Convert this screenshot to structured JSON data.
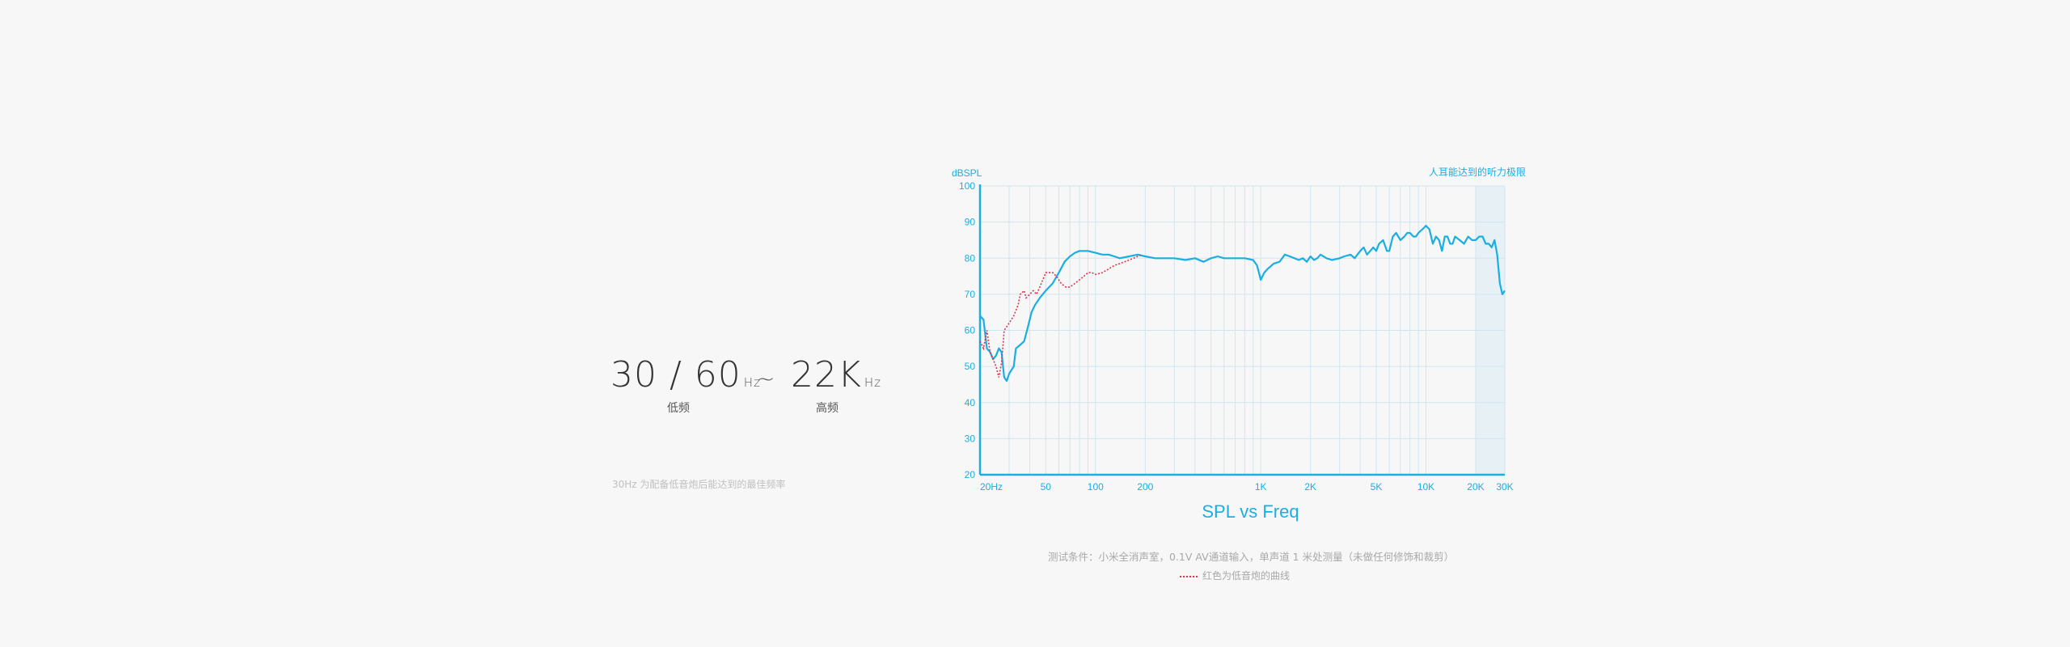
{
  "spec": {
    "low_value": "30 / 60",
    "low_unit": "Hz",
    "low_label": "低频",
    "range_symbol": "~",
    "high_value": "22K",
    "high_unit": "Hz",
    "high_label": "高频",
    "footnote": "30Hz 为配备低音炮后能达到的最佳频率"
  },
  "test_condition": "测试条件：小米全消声室，0.1V AV通道输入，单声道 1 米处测量（未做任何修饰和裁剪）",
  "legend_red": "红色为低音炮的曲线",
  "colors": {
    "main": "#1aaee2",
    "sub": "#e0344a",
    "grid": "#cfe6f2",
    "band": "#e6f0f5"
  },
  "chart_data": {
    "type": "line",
    "title": "SPL vs Freq",
    "ylabel": "dBSPL",
    "annotation": "人耳能达到的听力极限",
    "xscale": "log",
    "xlim": [
      20,
      30000
    ],
    "ylim": [
      20,
      100
    ],
    "xticks": [
      {
        "v": 20,
        "label": "20Hz"
      },
      {
        "v": 50,
        "label": "50"
      },
      {
        "v": 100,
        "label": "100"
      },
      {
        "v": 200,
        "label": "200"
      },
      {
        "v": 1000,
        "label": "1K"
      },
      {
        "v": 2000,
        "label": "2K"
      },
      {
        "v": 5000,
        "label": "5K"
      },
      {
        "v": 10000,
        "label": "10K"
      },
      {
        "v": 20000,
        "label": "20K"
      },
      {
        "v": 30000,
        "label": "30K"
      }
    ],
    "yticks": [
      20,
      30,
      40,
      50,
      60,
      70,
      80,
      90,
      100
    ],
    "shaded_band": [
      20000,
      30000
    ],
    "series": [
      {
        "role": "main",
        "points": [
          [
            20,
            64
          ],
          [
            21,
            63
          ],
          [
            22,
            55
          ],
          [
            23,
            54
          ],
          [
            24,
            52
          ],
          [
            25,
            53
          ],
          [
            26,
            55
          ],
          [
            27,
            54
          ],
          [
            28,
            47
          ],
          [
            29,
            46
          ],
          [
            30,
            48
          ],
          [
            32,
            50
          ],
          [
            33,
            55
          ],
          [
            35,
            56
          ],
          [
            37,
            57
          ],
          [
            39,
            61
          ],
          [
            41,
            65
          ],
          [
            43,
            67
          ],
          [
            46,
            69
          ],
          [
            50,
            71
          ],
          [
            55,
            73
          ],
          [
            60,
            76
          ],
          [
            65,
            79
          ],
          [
            70,
            80.5
          ],
          [
            75,
            81.5
          ],
          [
            80,
            82
          ],
          [
            90,
            82
          ],
          [
            100,
            81.5
          ],
          [
            110,
            81
          ],
          [
            120,
            81
          ],
          [
            130,
            80.5
          ],
          [
            140,
            80
          ],
          [
            160,
            80.5
          ],
          [
            180,
            81
          ],
          [
            200,
            80.5
          ],
          [
            230,
            80
          ],
          [
            260,
            80
          ],
          [
            300,
            80
          ],
          [
            350,
            79.5
          ],
          [
            400,
            80
          ],
          [
            450,
            79
          ],
          [
            500,
            80
          ],
          [
            550,
            80.5
          ],
          [
            600,
            80
          ],
          [
            700,
            80
          ],
          [
            800,
            80
          ],
          [
            900,
            79.5
          ],
          [
            950,
            78
          ],
          [
            1000,
            74
          ],
          [
            1050,
            76
          ],
          [
            1100,
            77
          ],
          [
            1200,
            78.5
          ],
          [
            1300,
            79
          ],
          [
            1400,
            81
          ],
          [
            1500,
            80.5
          ],
          [
            1600,
            80
          ],
          [
            1700,
            79.5
          ],
          [
            1800,
            80
          ],
          [
            1900,
            79
          ],
          [
            2000,
            80.5
          ],
          [
            2100,
            79.5
          ],
          [
            2200,
            80
          ],
          [
            2300,
            81
          ],
          [
            2500,
            80
          ],
          [
            2700,
            79.5
          ],
          [
            3000,
            80
          ],
          [
            3200,
            80.5
          ],
          [
            3500,
            81
          ],
          [
            3700,
            80
          ],
          [
            4000,
            82
          ],
          [
            4200,
            83
          ],
          [
            4400,
            81
          ],
          [
            4600,
            82
          ],
          [
            4800,
            83
          ],
          [
            5000,
            82
          ],
          [
            5200,
            84
          ],
          [
            5500,
            85
          ],
          [
            5800,
            82
          ],
          [
            6000,
            82
          ],
          [
            6300,
            86
          ],
          [
            6600,
            87
          ],
          [
            7000,
            85
          ],
          [
            7400,
            86
          ],
          [
            7700,
            87
          ],
          [
            8000,
            87
          ],
          [
            8400,
            86
          ],
          [
            8700,
            86
          ],
          [
            9000,
            87
          ],
          [
            9500,
            88
          ],
          [
            10000,
            89
          ],
          [
            10500,
            88
          ],
          [
            11000,
            84
          ],
          [
            11500,
            86
          ],
          [
            12000,
            85
          ],
          [
            12500,
            82
          ],
          [
            13000,
            86
          ],
          [
            13500,
            86
          ],
          [
            14000,
            84
          ],
          [
            14500,
            84
          ],
          [
            15000,
            86
          ],
          [
            16000,
            85
          ],
          [
            17000,
            84
          ],
          [
            18000,
            86
          ],
          [
            19000,
            85
          ],
          [
            20000,
            85
          ],
          [
            21000,
            86
          ],
          [
            22000,
            86
          ],
          [
            23000,
            84
          ],
          [
            24000,
            84
          ],
          [
            25000,
            83
          ],
          [
            26000,
            85
          ],
          [
            27000,
            81
          ],
          [
            28000,
            73
          ],
          [
            29000,
            70
          ],
          [
            30000,
            71
          ]
        ]
      },
      {
        "role": "subwoofer",
        "points": [
          [
            20,
            57
          ],
          [
            21,
            55
          ],
          [
            22,
            60
          ],
          [
            23,
            54
          ],
          [
            24,
            52
          ],
          [
            25,
            50
          ],
          [
            26,
            47
          ],
          [
            27,
            51
          ],
          [
            28,
            60
          ],
          [
            30,
            62
          ],
          [
            32,
            64
          ],
          [
            34,
            67
          ],
          [
            35,
            70
          ],
          [
            37,
            71
          ],
          [
            38,
            69
          ],
          [
            40,
            70
          ],
          [
            42,
            71
          ],
          [
            44,
            70
          ],
          [
            46,
            72
          ],
          [
            48,
            74
          ],
          [
            50,
            76
          ],
          [
            52,
            76
          ],
          [
            55,
            76
          ],
          [
            58,
            75
          ],
          [
            62,
            73
          ],
          [
            66,
            72
          ],
          [
            70,
            72
          ],
          [
            75,
            73
          ],
          [
            80,
            74
          ],
          [
            85,
            75
          ],
          [
            90,
            76
          ],
          [
            95,
            76
          ],
          [
            100,
            75.5
          ],
          [
            110,
            76
          ],
          [
            120,
            77
          ],
          [
            130,
            78
          ],
          [
            140,
            78.5
          ],
          [
            150,
            79
          ],
          [
            160,
            79.5
          ],
          [
            170,
            80
          ],
          [
            180,
            80.5
          ],
          [
            190,
            81
          ]
        ]
      }
    ]
  }
}
